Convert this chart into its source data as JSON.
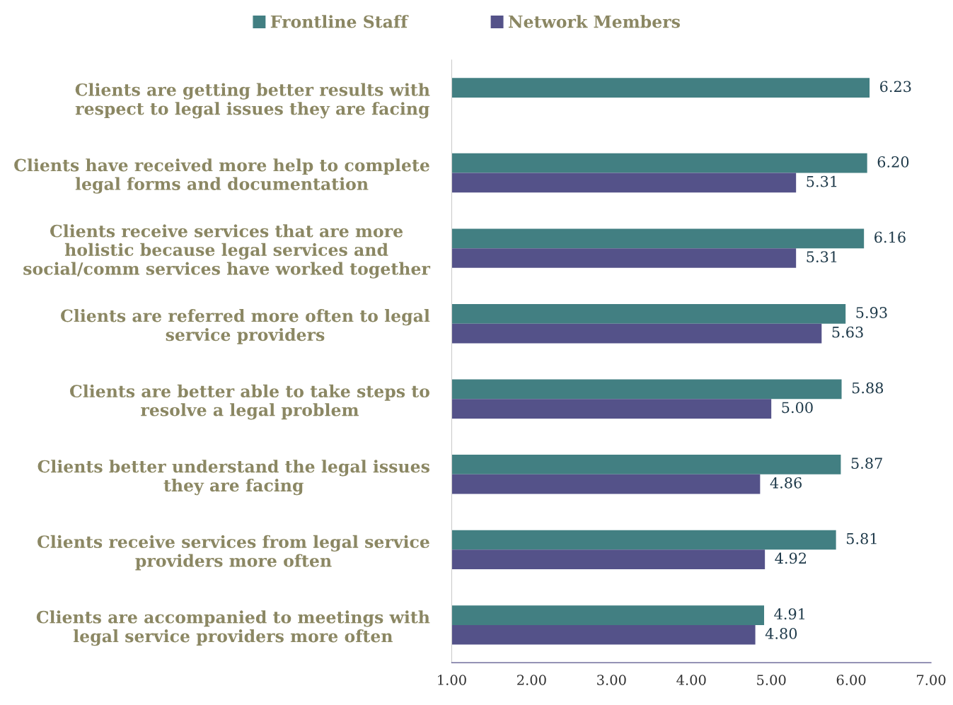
{
  "chart_data": {
    "type": "bar",
    "orientation": "horizontal",
    "categories": [
      "Clients are getting better results with\nrespect to legal issues they are facing",
      "Clients have received more help to complete\nlegal forms and documentation",
      "Clients receive services that are more\nholistic because legal services and\nsocial/comm services have worked together",
      "Clients are referred more often to legal\nservice providers",
      "Clients are better able to take steps to\nresolve a legal problem",
      "Clients better understand the legal issues\nthey are facing",
      "Clients receive services from legal service\nproviders more often",
      "Clients are accompanied to meetings with\nlegal service providers more often"
    ],
    "series": [
      {
        "name": "Frontline Staff",
        "color": "#427f82",
        "values": [
          6.23,
          6.2,
          6.16,
          5.93,
          5.88,
          5.87,
          5.81,
          4.91
        ],
        "value_labels": [
          "6.23",
          "6.20",
          "6.16",
          "5.93",
          "5.88",
          "5.87",
          "5.81",
          "4.91"
        ]
      },
      {
        "name": "Network Members",
        "color": "#545289",
        "values": [
          null,
          5.31,
          5.31,
          5.63,
          5.0,
          4.86,
          4.92,
          4.8
        ],
        "value_labels": [
          null,
          "5.31",
          "5.31",
          "5.63",
          "5.00",
          "4.86",
          "4.92",
          "4.80"
        ]
      }
    ],
    "xlim": [
      1,
      7
    ],
    "xticks": [
      {
        "value": 1,
        "label": "1.00"
      },
      {
        "value": 2,
        "label": "2.00"
      },
      {
        "value": 3,
        "label": "3.00"
      },
      {
        "value": 4,
        "label": "4.00"
      },
      {
        "value": 5,
        "label": "5.00"
      },
      {
        "value": 6,
        "label": "6.00"
      },
      {
        "value": 7,
        "label": "7.00"
      }
    ],
    "legend": "top",
    "grid": false
  }
}
